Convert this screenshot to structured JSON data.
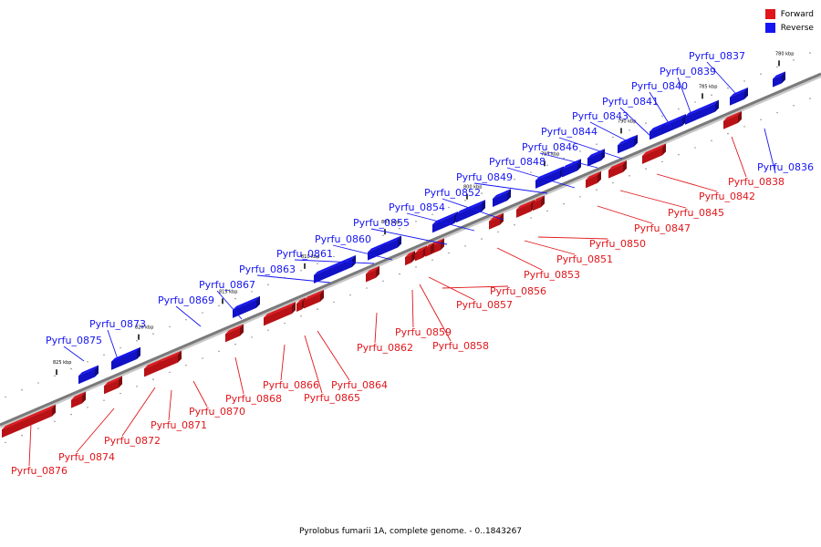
{
  "legend": {
    "forward_label": "Forward",
    "reverse_label": "Reverse",
    "forward_color": "#e0161b",
    "reverse_color": "#1515f2"
  },
  "caption": "Pyrolobus fumarii 1A, complete genome. - 0..1843267",
  "ticks": [
    "825 kbp",
    "820 kbp",
    "815 kbp",
    "810 kbp",
    "805 kbp",
    "800 kbp",
    "795 kbp",
    "790 kbp",
    "785 kbp",
    "780 kbp"
  ],
  "genes": [
    {
      "name": "Pyrfu_0876",
      "strand": "forward"
    },
    {
      "name": "Pyrfu_0875",
      "strand": "reverse"
    },
    {
      "name": "Pyrfu_0874",
      "strand": "forward"
    },
    {
      "name": "Pyrfu_0873",
      "strand": "reverse"
    },
    {
      "name": "Pyrfu_0872",
      "strand": "forward"
    },
    {
      "name": "Pyrfu_0871",
      "strand": "forward"
    },
    {
      "name": "Pyrfu_0870",
      "strand": "forward"
    },
    {
      "name": "Pyrfu_0869",
      "strand": "reverse"
    },
    {
      "name": "Pyrfu_0868",
      "strand": "forward"
    },
    {
      "name": "Pyrfu_0867",
      "strand": "reverse"
    },
    {
      "name": "Pyrfu_0866",
      "strand": "forward"
    },
    {
      "name": "Pyrfu_0865",
      "strand": "forward"
    },
    {
      "name": "Pyrfu_0864",
      "strand": "forward"
    },
    {
      "name": "Pyrfu_0863",
      "strand": "reverse"
    },
    {
      "name": "Pyrfu_0862",
      "strand": "forward"
    },
    {
      "name": "Pyrfu_0861",
      "strand": "reverse"
    },
    {
      "name": "Pyrfu_0860",
      "strand": "reverse"
    },
    {
      "name": "Pyrfu_0859",
      "strand": "forward"
    },
    {
      "name": "Pyrfu_0858",
      "strand": "forward"
    },
    {
      "name": "Pyrfu_0857",
      "strand": "forward"
    },
    {
      "name": "Pyrfu_0856",
      "strand": "forward"
    },
    {
      "name": "Pyrfu_0855",
      "strand": "reverse"
    },
    {
      "name": "Pyrfu_0854",
      "strand": "reverse"
    },
    {
      "name": "Pyrfu_0853",
      "strand": "forward"
    },
    {
      "name": "Pyrfu_0852",
      "strand": "reverse"
    },
    {
      "name": "Pyrfu_0851",
      "strand": "forward"
    },
    {
      "name": "Pyrfu_0850",
      "strand": "forward"
    },
    {
      "name": "Pyrfu_0849",
      "strand": "reverse"
    },
    {
      "name": "Pyrfu_0848",
      "strand": "reverse"
    },
    {
      "name": "Pyrfu_0847",
      "strand": "forward"
    },
    {
      "name": "Pyrfu_0846",
      "strand": "reverse"
    },
    {
      "name": "Pyrfu_0845",
      "strand": "forward"
    },
    {
      "name": "Pyrfu_0844",
      "strand": "reverse"
    },
    {
      "name": "Pyrfu_0843",
      "strand": "reverse"
    },
    {
      "name": "Pyrfu_0842",
      "strand": "forward"
    },
    {
      "name": "Pyrfu_0841",
      "strand": "reverse"
    },
    {
      "name": "Pyrfu_0840",
      "strand": "reverse"
    },
    {
      "name": "Pyrfu_0839",
      "strand": "reverse"
    },
    {
      "name": "Pyrfu_0838",
      "strand": "forward"
    },
    {
      "name": "Pyrfu_0837",
      "strand": "reverse"
    },
    {
      "name": "Pyrfu_0836",
      "strand": "reverse"
    }
  ]
}
